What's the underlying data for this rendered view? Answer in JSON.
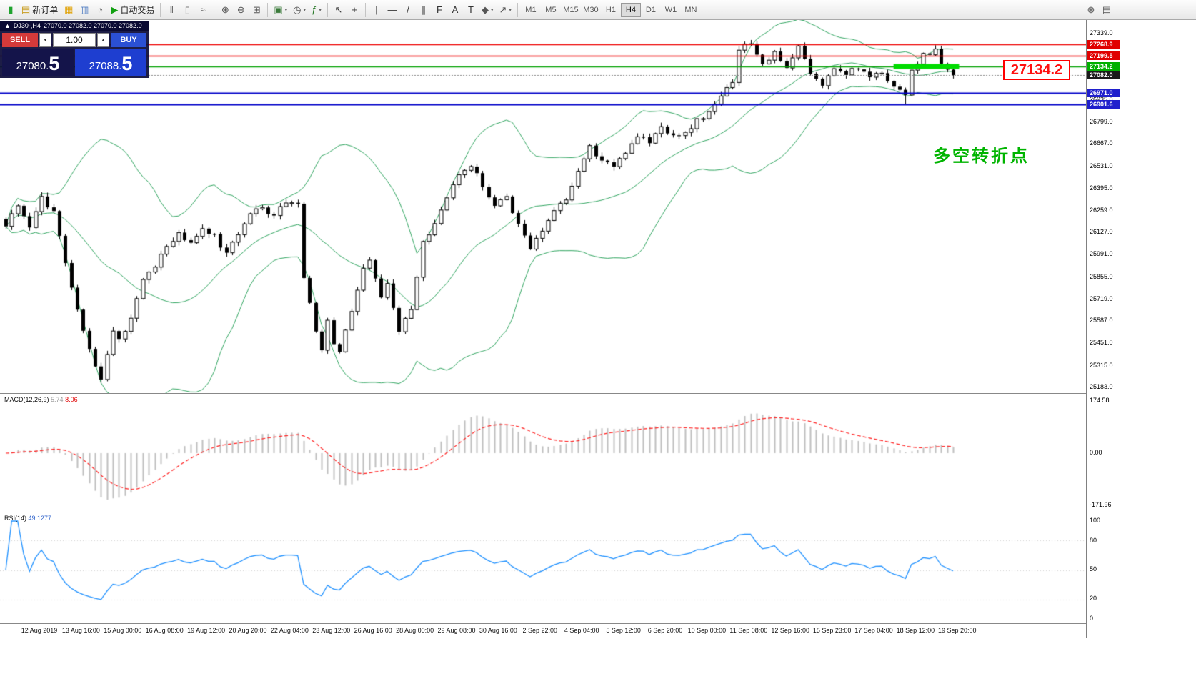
{
  "toolbar": {
    "groups": [
      {
        "items": [
          {
            "name": "app-icon",
            "glyph": "▮",
            "color": "#1fa32e",
            "kind": "logo"
          },
          {
            "name": "new-order-button",
            "glyph": "▤",
            "color": "#c29000",
            "label": "新订单"
          },
          {
            "name": "market-watch-icon",
            "glyph": "▦",
            "color": "#e0a000"
          },
          {
            "name": "data-window-icon",
            "glyph": "▥",
            "color": "#4a78c0"
          },
          {
            "name": "navigator-icon",
            "glyph": "◔",
            "color": "#707070"
          },
          {
            "name": "auto-trading-button",
            "glyph": "▶",
            "color": "#12a012",
            "label": "自动交易"
          }
        ]
      },
      {
        "items": [
          {
            "name": "bar-chart-button",
            "glyph": "‖",
            "color": "#555"
          },
          {
            "name": "candlestick-chart-button",
            "glyph": "▯",
            "color": "#555"
          },
          {
            "name": "line-chart-button",
            "glyph": "≈",
            "color": "#555"
          }
        ]
      },
      {
        "items": [
          {
            "name": "zoom-in-button",
            "glyph": "⊕",
            "color": "#555"
          },
          {
            "name": "zoom-out-button",
            "glyph": "⊖",
            "color": "#555"
          },
          {
            "name": "tile-windows-button",
            "glyph": "⊞",
            "color": "#555"
          }
        ]
      },
      {
        "items": [
          {
            "name": "new-chart-button",
            "glyph": "▣",
            "color": "#3a7a3a",
            "caret": true
          },
          {
            "name": "profiles-button",
            "glyph": "◷",
            "color": "#555",
            "caret": true
          },
          {
            "name": "indicators-button",
            "glyph": "ƒ",
            "color": "#2a7a2a",
            "caret": true
          }
        ]
      },
      {
        "items": [
          {
            "name": "cursor-button",
            "glyph": "↖",
            "color": "#333"
          },
          {
            "name": "crosshair-button",
            "glyph": "+",
            "color": "#333"
          }
        ]
      },
      {
        "items": [
          {
            "name": "vertical-line-button",
            "glyph": "|",
            "color": "#333"
          },
          {
            "name": "horizontal-line-button",
            "glyph": "—",
            "color": "#333"
          },
          {
            "name": "trendline-button",
            "glyph": "/",
            "color": "#333"
          },
          {
            "name": "channel-button",
            "glyph": "∥",
            "color": "#333"
          },
          {
            "name": "fibonacci-button",
            "glyph": "F",
            "color": "#333"
          },
          {
            "name": "text-button",
            "glyph": "A",
            "color": "#333"
          },
          {
            "name": "text-label-button",
            "glyph": "T",
            "color": "#333"
          },
          {
            "name": "shapes-button",
            "glyph": "◆",
            "color": "#555",
            "caret": true
          },
          {
            "name": "arrows-button",
            "glyph": "↗",
            "color": "#555",
            "caret": true
          }
        ]
      },
      {
        "items": [
          {
            "name": "timeframe-m1-button",
            "kind": "tf",
            "label": "M1"
          },
          {
            "name": "timeframe-m5-button",
            "kind": "tf",
            "label": "M5"
          },
          {
            "name": "timeframe-m15-button",
            "kind": "tf",
            "label": "M15"
          },
          {
            "name": "timeframe-m30-button",
            "kind": "tf",
            "label": "M30"
          },
          {
            "name": "timeframe-h1-button",
            "kind": "tf",
            "label": "H1"
          },
          {
            "name": "timeframe-h4-button",
            "kind": "tf",
            "label": "H4",
            "active": true
          },
          {
            "name": "timeframe-d1-button",
            "kind": "tf",
            "label": "D1"
          },
          {
            "name": "timeframe-w1-button",
            "kind": "tf",
            "label": "W1"
          },
          {
            "name": "timeframe-mn-button",
            "kind": "tf",
            "label": "MN"
          }
        ]
      },
      {
        "align": "right",
        "items": [
          {
            "name": "search-icon",
            "glyph": "⊕",
            "color": "#555"
          },
          {
            "name": "window-list-icon",
            "glyph": "▤",
            "color": "#555"
          }
        ]
      }
    ]
  },
  "chart_header": {
    "marker": "▲",
    "symbol": "DJ30-,H4",
    "ohlc": "27070.0 27082.0 27070.0 27082.0"
  },
  "trade_panel": {
    "sell_label": "SELL",
    "buy_label": "BUY",
    "volume": "1.00",
    "dropdown_glyph": "▼",
    "stepper_glyph": "▲",
    "sell_price_int": "27080.",
    "sell_price_big": "5",
    "buy_price_int": "27088.",
    "buy_price_big": "5"
  },
  "overlays": {
    "big_price": "27134.2",
    "turning_point": "多空转折点"
  },
  "price_axis": {
    "ticks": [
      "27339.0",
      "27203.0",
      "27067.0",
      "26935.0",
      "26799.0",
      "26667.0",
      "26531.0",
      "26395.0",
      "26259.0",
      "26127.0",
      "25991.0",
      "25855.0",
      "25719.0",
      "25587.0",
      "25451.0",
      "25315.0",
      "25183.0"
    ],
    "badges": [
      {
        "text": "27268.9",
        "bg": "#e00000"
      },
      {
        "text": "27199.5",
        "bg": "#e00000"
      },
      {
        "text": "27134.2",
        "bg": "#00b000"
      },
      {
        "text": "27082.0",
        "bg": "#1a1a1a"
      },
      {
        "text": "26971.0",
        "bg": "#2020cc"
      },
      {
        "text": "26901.6",
        "bg": "#2020cc"
      }
    ]
  },
  "macd_panel": {
    "name": "MACD(12,26,9)",
    "value_main": "5.74",
    "value_signal": "8.06",
    "axis_top": "174.58",
    "axis_mid": "0.00",
    "axis_bottom": "-171.96"
  },
  "rsi_panel": {
    "name": "RSI(14)",
    "value": "49.1277",
    "levels": [
      "100",
      "80",
      "50",
      "20",
      "0"
    ]
  },
  "time_axis": {
    "labels": [
      "12 Aug 2019",
      "13 Aug 16:00",
      "15 Aug 00:00",
      "16 Aug 08:00",
      "19 Aug 12:00",
      "20 Aug 20:00",
      "22 Aug 04:00",
      "23 Aug 12:00",
      "26 Aug 16:00",
      "28 Aug 00:00",
      "29 Aug 08:00",
      "30 Aug 16:00",
      "2 Sep 22:00",
      "4 Sep 04:00",
      "5 Sep 12:00",
      "6 Sep 20:00",
      "10 Sep 00:00",
      "11 Sep 08:00",
      "12 Sep 16:00",
      "15 Sep 23:00",
      "17 Sep 04:00",
      "18 Sep 12:00",
      "19 Sep 20:00"
    ]
  },
  "chart_data": {
    "type": "candlestick",
    "symbol": "DJ30-",
    "timeframe": "H4",
    "ohlc_display": {
      "open": "27070.0",
      "high": "27082.0",
      "low": "27070.0",
      "close": "27082.0"
    },
    "price_axis_range": {
      "min": 25183.0,
      "max": 27339.0
    },
    "num_candles": 160,
    "close_anchors": [
      [
        0,
        26160
      ],
      [
        2,
        26300
      ],
      [
        4,
        26140
      ],
      [
        6,
        26330
      ],
      [
        8,
        26250
      ],
      [
        10,
        25950
      ],
      [
        12,
        25640
      ],
      [
        14,
        25400
      ],
      [
        16,
        25210
      ],
      [
        18,
        25520
      ],
      [
        19,
        25460
      ],
      [
        21,
        25600
      ],
      [
        23,
        25830
      ],
      [
        25,
        25900
      ],
      [
        27,
        26050
      ],
      [
        29,
        26120
      ],
      [
        31,
        26060
      ],
      [
        33,
        26150
      ],
      [
        35,
        26100
      ],
      [
        37,
        25990
      ],
      [
        39,
        26120
      ],
      [
        41,
        26230
      ],
      [
        43,
        26270
      ],
      [
        45,
        26230
      ],
      [
        47,
        26310
      ],
      [
        49,
        26300
      ],
      [
        50,
        25860
      ],
      [
        51,
        25700
      ],
      [
        52,
        25520
      ],
      [
        53,
        25420
      ],
      [
        54,
        25580
      ],
      [
        55,
        25440
      ],
      [
        56,
        25385
      ],
      [
        58,
        25650
      ],
      [
        60,
        25900
      ],
      [
        61,
        25960
      ],
      [
        63,
        25740
      ],
      [
        64,
        25800
      ],
      [
        66,
        25530
      ],
      [
        68,
        25640
      ],
      [
        70,
        26060
      ],
      [
        72,
        26180
      ],
      [
        74,
        26350
      ],
      [
        76,
        26480
      ],
      [
        78,
        26540
      ],
      [
        80,
        26400
      ],
      [
        82,
        26300
      ],
      [
        84,
        26340
      ],
      [
        86,
        26160
      ],
      [
        88,
        26030
      ],
      [
        90,
        26120
      ],
      [
        92,
        26250
      ],
      [
        94,
        26330
      ],
      [
        96,
        26480
      ],
      [
        98,
        26640
      ],
      [
        100,
        26560
      ],
      [
        102,
        26510
      ],
      [
        104,
        26610
      ],
      [
        106,
        26720
      ],
      [
        108,
        26680
      ],
      [
        110,
        26760
      ],
      [
        112,
        26700
      ],
      [
        114,
        26740
      ],
      [
        116,
        26800
      ],
      [
        118,
        26860
      ],
      [
        120,
        26960
      ],
      [
        122,
        27050
      ],
      [
        123,
        27230
      ],
      [
        125,
        27280
      ],
      [
        127,
        27150
      ],
      [
        129,
        27220
      ],
      [
        131,
        27120
      ],
      [
        133,
        27260
      ],
      [
        135,
        27100
      ],
      [
        137,
        27010
      ],
      [
        139,
        27120
      ],
      [
        141,
        27080
      ],
      [
        143,
        27130
      ],
      [
        145,
        27060
      ],
      [
        147,
        27100
      ],
      [
        149,
        27010
      ],
      [
        150,
        26980
      ],
      [
        151,
        26950
      ],
      [
        152,
        27120
      ],
      [
        154,
        27200
      ],
      [
        156,
        27240
      ],
      [
        157,
        27140
      ],
      [
        158,
        27100
      ],
      [
        159,
        27082
      ]
    ],
    "special_wicks": [
      {
        "index": 151,
        "low": 26902
      }
    ],
    "horizontal_lines": [
      {
        "price": 27268.9,
        "color": "#ee0000",
        "width": 1.3
      },
      {
        "price": 27199.5,
        "color": "#ee0000",
        "width": 1.3
      },
      {
        "price": 27134.2,
        "color": "#00a000",
        "width": 1.3
      },
      {
        "price": 26971.0,
        "color": "#0000c8",
        "width": 2
      },
      {
        "price": 26901.6,
        "color": "#0000c8",
        "width": 2
      }
    ],
    "current_price": 27082.0,
    "current_price_line_color": "#888888",
    "highlight_bar": {
      "price": 27134.2,
      "from_index": 149,
      "to_index": 160,
      "color": "#00dc00",
      "thickness": 7
    },
    "indicators": {
      "bollinger": {
        "period": 20,
        "deviation": 2,
        "color": "#2fa45f"
      },
      "macd": {
        "fast": 12,
        "slow": 26,
        "signal": 9,
        "histogram_color": "#bfbfbf",
        "signal_color": "#ff2020",
        "axis_max": 174.58,
        "axis_min": -171.96,
        "display_values": [
          5.74,
          8.06
        ]
      },
      "rsi": {
        "period": 14,
        "color": "#1e90ff",
        "display_value": 49.1277,
        "levels": [
          80,
          50,
          20
        ]
      }
    }
  }
}
